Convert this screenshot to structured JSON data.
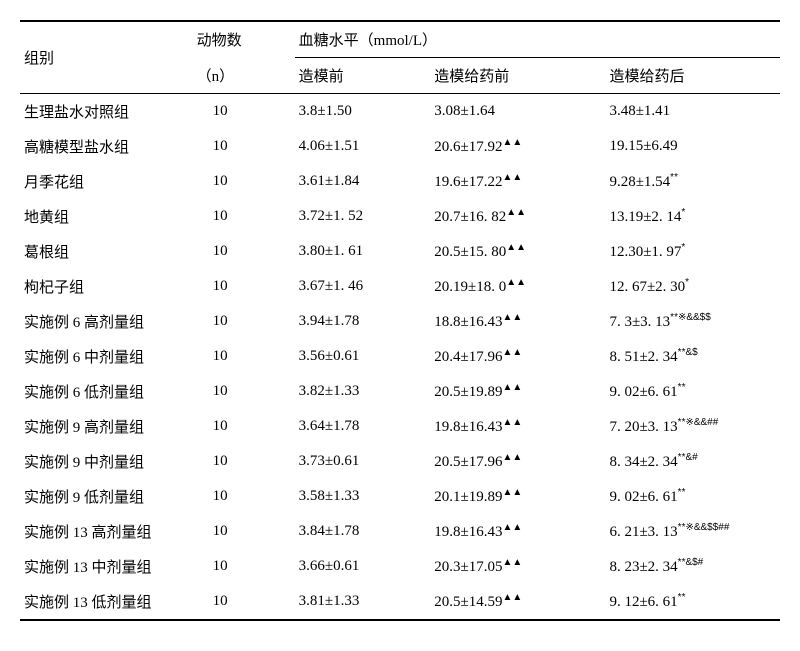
{
  "table": {
    "header": {
      "group": "组别",
      "n_label": "动物数",
      "n_sub": "（n）",
      "blood_label": "血糖水平（mmol/L）",
      "col_a": "造模前",
      "col_b": "造模给药前",
      "col_c": "造模给药后"
    },
    "rows": [
      {
        "group": "生理盐水对照组",
        "n": "10",
        "a": "3.8±1.50",
        "b": "3.08±1.64",
        "b_sup": "",
        "c": "3.48±1.41",
        "c_sup": ""
      },
      {
        "group": "高糖模型盐水组",
        "n": "10",
        "a": "4.06±1.51",
        "b": "20.6±17.92",
        "b_sup": "▲▲",
        "c": "19.15±6.49",
        "c_sup": ""
      },
      {
        "group": "月季花组",
        "n": "10",
        "a": "3.61±1.84",
        "b": "19.6±17.22",
        "b_sup": "▲▲",
        "c": "9.28±1.54",
        "c_sup": "**"
      },
      {
        "group": "地黄组",
        "n": "10",
        "a": "3.72±1. 52",
        "b": "20.7±16. 82",
        "b_sup": "▲▲",
        "c": "13.19±2. 14",
        "c_sup": "*"
      },
      {
        "group": "葛根组",
        "n": "10",
        "a": "3.80±1. 61",
        "b": "20.5±15. 80",
        "b_sup": "▲▲",
        "c": "12.30±1. 97",
        "c_sup": "*"
      },
      {
        "group": "枸杞子组",
        "n": "10",
        "a": "3.67±1. 46",
        "b": "20.19±18. 0",
        "b_sup": "▲▲",
        "c": "12. 67±2. 30",
        "c_sup": "*"
      },
      {
        "group": "实施例 6 高剂量组",
        "n": "10",
        "a": "3.94±1.78",
        "b": "18.8±16.43",
        "b_sup": "▲▲",
        "c": "7. 3±3. 13",
        "c_sup": "**※&&$$"
      },
      {
        "group": "实施例 6 中剂量组",
        "n": "10",
        "a": "3.56±0.61",
        "b": "20.4±17.96",
        "b_sup": "▲▲",
        "c": "8. 51±2. 34",
        "c_sup": "**&$"
      },
      {
        "group": "实施例 6 低剂量组",
        "n": "10",
        "a": "3.82±1.33",
        "b": "20.5±19.89",
        "b_sup": "▲▲",
        "c": "9. 02±6. 61",
        "c_sup": "**"
      },
      {
        "group": "实施例 9 高剂量组",
        "n": "10",
        "a": "3.64±1.78",
        "b": "19.8±16.43",
        "b_sup": "▲▲",
        "c": "7. 20±3. 13",
        "c_sup": "**※&&##"
      },
      {
        "group": "实施例 9 中剂量组",
        "n": "10",
        "a": "3.73±0.61",
        "b": "20.5±17.96",
        "b_sup": "▲▲",
        "c": "8. 34±2. 34",
        "c_sup": "**&#"
      },
      {
        "group": "实施例 9 低剂量组",
        "n": "10",
        "a": "3.58±1.33",
        "b": "20.1±19.89",
        "b_sup": "▲▲",
        "c": "9. 02±6. 61",
        "c_sup": "**"
      },
      {
        "group": "实施例 13 高剂量组",
        "n": "10",
        "a": "3.84±1.78",
        "b": "19.8±16.43",
        "b_sup": "▲▲",
        "c": "6. 21±3. 13",
        "c_sup": "**※&&$$##"
      },
      {
        "group": "实施例 13 中剂量组",
        "n": "10",
        "a": "3.66±0.61",
        "b": "20.3±17.05",
        "b_sup": "▲▲",
        "c": "8. 23±2. 34",
        "c_sup": "**&$#"
      },
      {
        "group": "实施例 13 低剂量组",
        "n": "10",
        "a": "3.81±1.33",
        "b": "20.5±14.59",
        "b_sup": "▲▲",
        "c": "9. 12±6. 61",
        "c_sup": "**"
      }
    ]
  }
}
